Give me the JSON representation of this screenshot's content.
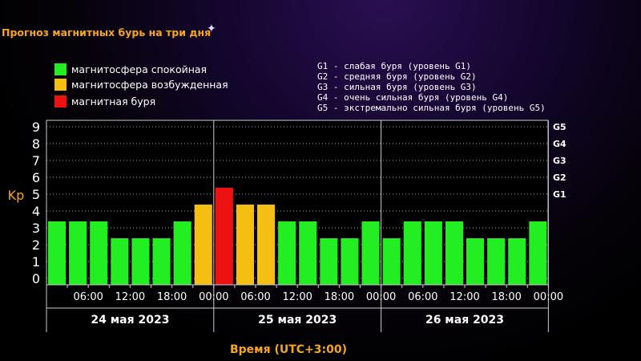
{
  "header": {
    "title": "Прогноз магнитных бурь на три дня"
  },
  "legend": [
    {
      "label": "магнитосфера спокойная",
      "color": "#22ee22"
    },
    {
      "label": "магнитосфера возбужденная",
      "color": "#f5be12"
    },
    {
      "label": "магнитная буря",
      "color": "#ee1111"
    }
  ],
  "g_levels": [
    "G1 - слабая буря (уровень G1)",
    "G2 - средняя буря (уровень G2)",
    "G3 - сильная буря (уровень G3)",
    "G4 - очень сильная буря (уровень G4)",
    "G5 - экстремально сильная буря (уровень G5)"
  ],
  "colors": {
    "quiet": "#22ee22",
    "active": "#f5be12",
    "storm": "#ee1111",
    "accent": "#f5a623"
  },
  "chart_data": {
    "type": "bar",
    "title": "",
    "ylabel": "Kp",
    "xlabel": "Время (UTC+3:00)",
    "ylim": [
      0,
      9
    ],
    "yticks": [
      "0",
      "1",
      "2",
      "3",
      "4",
      "5",
      "6",
      "7",
      "8",
      "9"
    ],
    "right_ticks": [
      {
        "label": "G1",
        "value": 5
      },
      {
        "label": "G2",
        "value": 6
      },
      {
        "label": "G3",
        "value": 7
      },
      {
        "label": "G4",
        "value": 8
      },
      {
        "label": "G5",
        "value": 9
      }
    ],
    "xticks": [
      "06:00",
      "12:00",
      "18:00",
      "00:00",
      "06:00",
      "12:00",
      "18:00",
      "00:00",
      "06:00",
      "12:00",
      "18:00",
      "00:00"
    ],
    "days": [
      "24 мая 2023",
      "25 мая 2023",
      "26 мая 2023"
    ],
    "series": [
      {
        "values": [
          3,
          3,
          3,
          2,
          2,
          2,
          3,
          4,
          5,
          4,
          4,
          3,
          3,
          2,
          2,
          3,
          2,
          3,
          3,
          3,
          2,
          2,
          2,
          3
        ],
        "levels": [
          "quiet",
          "quiet",
          "quiet",
          "quiet",
          "quiet",
          "quiet",
          "quiet",
          "active",
          "storm",
          "active",
          "active",
          "quiet",
          "quiet",
          "quiet",
          "quiet",
          "quiet",
          "quiet",
          "quiet",
          "quiet",
          "quiet",
          "quiet",
          "quiet",
          "quiet",
          "quiet"
        ]
      }
    ],
    "grid": true
  }
}
